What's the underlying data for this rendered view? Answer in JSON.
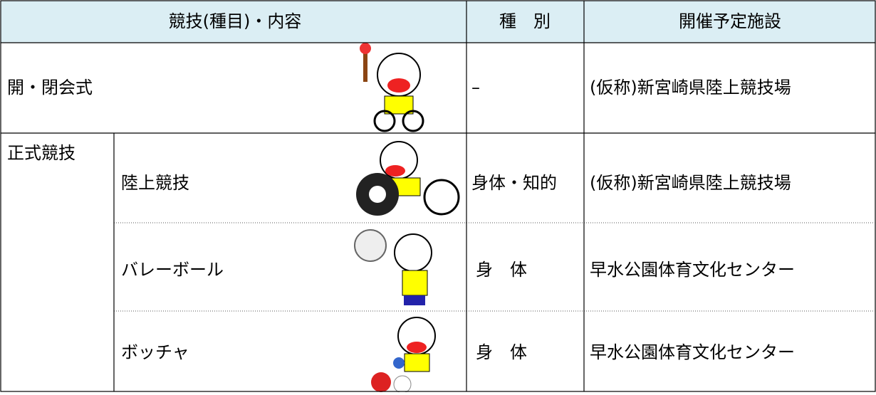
{
  "table": {
    "header": [
      "競技(種目)・内容",
      "種　別",
      "開催予定施設"
    ],
    "opening": {
      "event": "開・閉会式",
      "type": "–",
      "venue": "(仮称)新宮崎県陸上競技場"
    },
    "official": {
      "label": "正式競技",
      "rows": [
        {
          "event": "陸上競技",
          "type": "身体・知的",
          "venue": "(仮称)新宮崎県陸上競技場"
        },
        {
          "event": "バレーボール",
          "type": "身　体",
          "venue": "早水公園体育文化センター"
        },
        {
          "event": "ボッチャ",
          "type": "身　体",
          "venue": "早水公園体育文化センター"
        }
      ]
    }
  }
}
